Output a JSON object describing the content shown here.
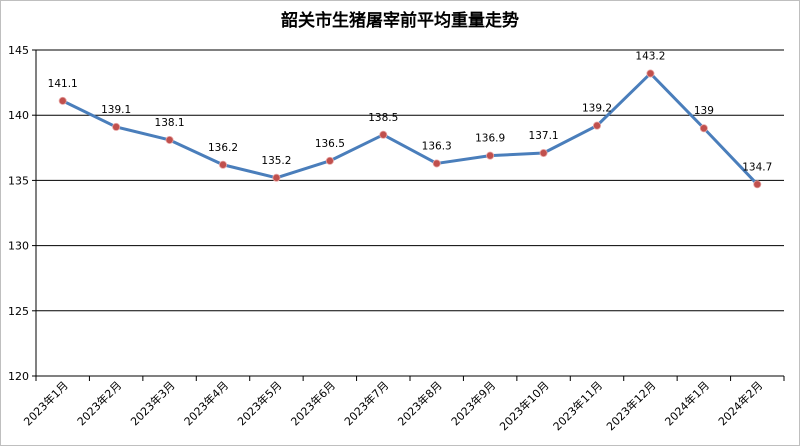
{
  "chart_data": {
    "type": "line",
    "title": "韶关市生猪屠宰前平均重量走势",
    "xlabel": "",
    "ylabel": "",
    "categories": [
      "2023年1月",
      "2023年2月",
      "2023年3月",
      "2023年4月",
      "2023年5月",
      "2023年6月",
      "2023年7月",
      "2023年8月",
      "2023年9月",
      "2023年10月",
      "2023年11月",
      "2023年12月",
      "2024年1月",
      "2024年2月"
    ],
    "series": [
      {
        "values": [
          141.1,
          139.1,
          138.1,
          136.2,
          135.2,
          136.5,
          138.5,
          136.3,
          136.9,
          137.1,
          139.2,
          143.2,
          139,
          134.7
        ],
        "labels": [
          "141.1",
          "139.1",
          "138.1",
          "136.2",
          "135.2",
          "136.5",
          "138.5",
          "136.3",
          "136.9",
          "137.1",
          "139.2",
          "143.2",
          "139",
          "134.7"
        ]
      }
    ],
    "ylim": [
      120,
      145
    ],
    "yticks": [
      120,
      125,
      130,
      135,
      140,
      145
    ],
    "grid": true,
    "legend": "none",
    "colors": {
      "line": "#4a7ebb",
      "marker": "#c0504d",
      "grid": "#000000",
      "axis": "#000000"
    }
  }
}
